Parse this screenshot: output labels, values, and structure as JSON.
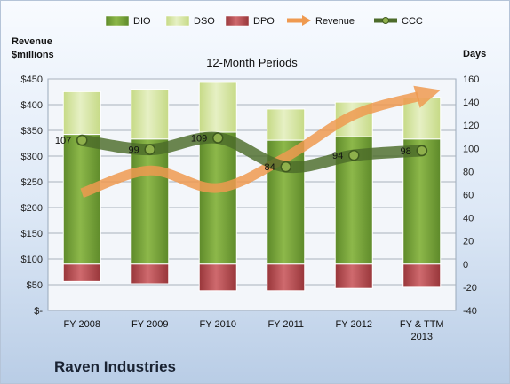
{
  "company": "Raven Industries",
  "chart_data": {
    "type": "bar",
    "title": "12-Month Periods",
    "categories": [
      "FY 2008",
      "FY 2009",
      "FY 2010",
      "FY 2011",
      "FY 2012",
      "FY & TTM 2013"
    ],
    "left_axis": {
      "label_lines": [
        "Revenue",
        "$millions"
      ],
      "ylim": [
        0,
        450
      ],
      "ticks": [
        0,
        50,
        100,
        150,
        200,
        250,
        300,
        350,
        400,
        450
      ],
      "tick_labels": [
        "$-",
        "$50",
        "$100",
        "$150",
        "$200",
        "$250",
        "$300",
        "$350",
        "$400",
        "$450"
      ]
    },
    "right_axis": {
      "label": "Days",
      "ylim": [
        -40,
        160
      ],
      "ticks": [
        -40,
        -20,
        0,
        20,
        40,
        60,
        80,
        100,
        120,
        140,
        160
      ]
    },
    "legend_position": "top",
    "series": [
      {
        "name": "DIO",
        "type": "stacked-bar",
        "axis": "right",
        "color": "#7ba63a",
        "values": [
          112,
          108,
          114,
          107,
          110,
          108
        ]
      },
      {
        "name": "DSO",
        "type": "stacked-bar",
        "axis": "right",
        "color": "#d6e6a6",
        "values": [
          37,
          43,
          43,
          27,
          30,
          36
        ]
      },
      {
        "name": "DPO",
        "type": "negative-bar",
        "axis": "right",
        "color": "#bc4a4f",
        "values": [
          -15,
          -17,
          -23,
          -23,
          -21,
          -20
        ]
      },
      {
        "name": "Revenue",
        "type": "line",
        "axis": "left",
        "color": "#ef9a50",
        "values": [
          228,
          272,
          238,
          298,
          380,
          418
        ]
      },
      {
        "name": "CCC",
        "type": "line",
        "axis": "right",
        "color": "#4c6b2a",
        "values": [
          107,
          99,
          109,
          84,
          94,
          98
        ],
        "data_labels": [
          "107",
          "99",
          "109",
          "84",
          "94",
          "98"
        ]
      }
    ]
  }
}
